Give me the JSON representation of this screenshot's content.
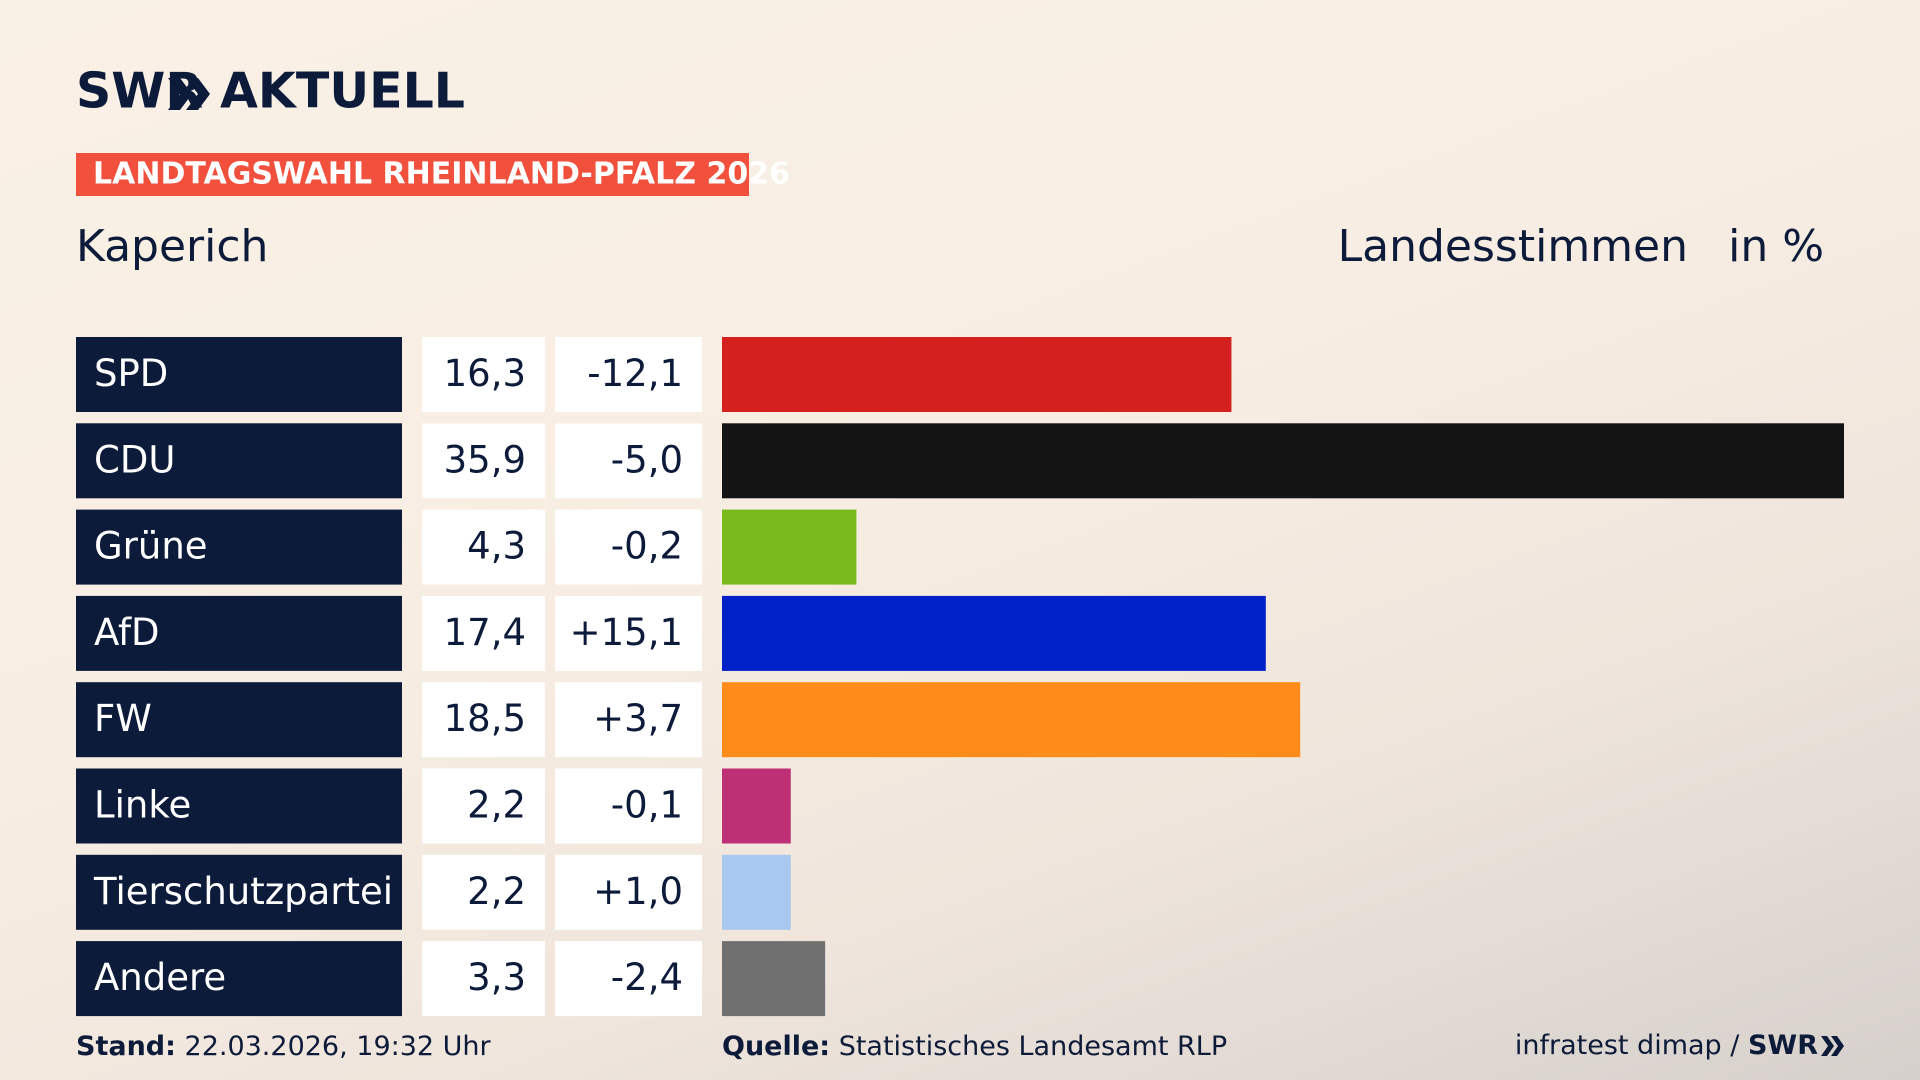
{
  "chart_data": {
    "type": "bar_table",
    "brand": "SWR",
    "brand_sub": "AKTUELL",
    "banner": "LANDTAGSWAHL RHEINLAND-PFALZ 2026",
    "title": "Kaperich",
    "measure": "Landesstimmen",
    "unit": "in %",
    "categories": [
      "SPD",
      "CDU",
      "Grüne",
      "AfD",
      "FW",
      "Linke",
      "Tierschutzpartei",
      "Andere"
    ],
    "values": [
      16.3,
      35.9,
      4.3,
      17.4,
      18.5,
      2.2,
      2.2,
      3.3
    ],
    "value_labels": [
      "16,3",
      "35,9",
      "4,3",
      "17,4",
      "18,5",
      "2,2",
      "2,2",
      "3,3"
    ],
    "changes": [
      -12.1,
      -5.0,
      -0.2,
      15.1,
      3.7,
      -0.1,
      1.0,
      -2.4
    ],
    "change_labels": [
      "-12,1",
      "-5,0",
      "-0,2",
      "+15,1",
      "+3,7",
      "-0,1",
      "+1,0",
      "-2,4"
    ],
    "colors": [
      "#d52020",
      "#141414",
      "#7aba1e",
      "#0020c8",
      "#ff8c1a",
      "#bd3075",
      "#a9c8ef",
      "#707070"
    ],
    "footer": {
      "stand_label": "Stand:",
      "stand": "22.03.2026, 19:32 Uhr",
      "source_label": "Quelle:",
      "source": "Statistisches Landesamt RLP",
      "credit": "infratest dimap /",
      "credit_brand": "SWR"
    }
  }
}
